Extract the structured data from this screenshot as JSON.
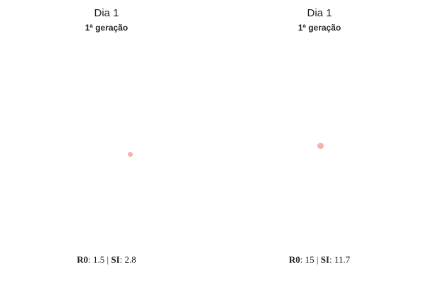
{
  "dot_color": "#f4b3b0",
  "panels": [
    {
      "day_title": "Dia 1",
      "generation": "1ª geração",
      "stats": {
        "r0_label": "R0",
        "r0_sep": ": ",
        "r0_value": "1.5",
        "divider": " | ",
        "si_label": "SI",
        "si_sep": ": ",
        "si_value": "2.8"
      }
    },
    {
      "day_title": "Dia 1",
      "generation": "1ª geração",
      "stats": {
        "r0_label": "R0",
        "r0_sep": ": ",
        "r0_value": "15",
        "divider": " | ",
        "si_label": "SI",
        "si_sep": ": ",
        "si_value": "11.7"
      }
    }
  ]
}
